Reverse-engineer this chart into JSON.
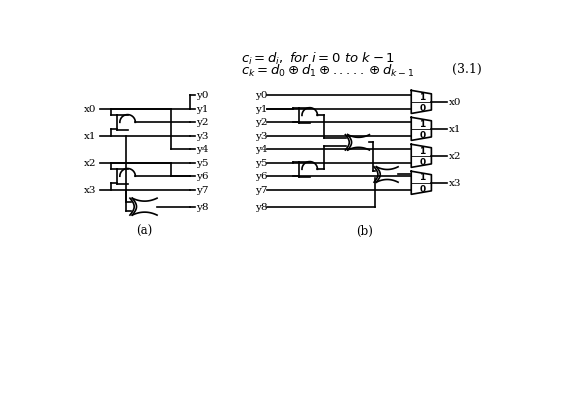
{
  "bg_color": "#ffffff",
  "line_color": "#000000",
  "text_color": "#000000",
  "label_a": "(a)",
  "label_b": "(b)",
  "eq_number": "(3.1)"
}
